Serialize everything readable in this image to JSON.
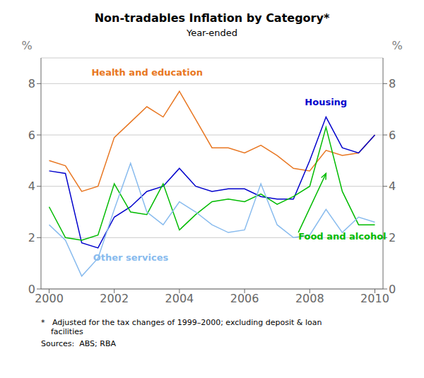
{
  "chart_data": {
    "type": "line",
    "title": "Non-tradables Inflation by Category*",
    "subtitle": "Year-ended",
    "footnotes": [
      "*   Adjusted for the tax changes of 1999–2000; excluding deposit & loan",
      "    facilities"
    ],
    "sources": "Sources:  ABS; RBA",
    "ylabel": "%",
    "y2label": "%",
    "xlim": [
      1999.75,
      2010.25
    ],
    "xticks": [
      2000,
      2002,
      2004,
      2006,
      2008,
      2010
    ],
    "ylim": [
      0,
      9
    ],
    "yticks": [
      0,
      2,
      4,
      6,
      8
    ],
    "y2lim": [
      0,
      9
    ],
    "y2ticks": [
      0,
      2,
      4,
      6,
      8
    ],
    "grid": true,
    "x": [
      2000.0,
      2000.5,
      2001.0,
      2001.5,
      2002.0,
      2002.5,
      2003.0,
      2003.5,
      2004.0,
      2004.5,
      2005.0,
      2005.5,
      2006.0,
      2006.5,
      2007.0,
      2007.5,
      2008.0,
      2008.5,
      2009.0,
      2009.5,
      2010.0
    ],
    "series": [
      {
        "name": "Health and education",
        "color": "#E87722",
        "values": [
          5.0,
          4.8,
          3.8,
          4.0,
          5.9,
          6.5,
          7.1,
          6.7,
          7.7,
          6.6,
          5.5,
          5.5,
          5.3,
          5.6,
          5.2,
          4.7,
          4.6,
          5.4,
          5.2,
          5.3,
          6.0
        ]
      },
      {
        "name": "Housing",
        "color": "#0000CC",
        "values": [
          4.6,
          4.5,
          1.8,
          1.6,
          2.8,
          3.2,
          3.8,
          4.0,
          4.7,
          4.0,
          3.8,
          3.9,
          3.9,
          3.6,
          3.5,
          3.5,
          5.0,
          6.7,
          5.5,
          5.3,
          6.0
        ]
      },
      {
        "name": "Food and alcohol",
        "color": "#00BB00",
        "values": [
          3.2,
          2.0,
          1.9,
          2.1,
          4.1,
          3.0,
          2.9,
          4.1,
          2.3,
          2.9,
          3.4,
          3.5,
          3.4,
          3.7,
          3.3,
          3.6,
          4.0,
          6.3,
          3.8,
          2.5,
          2.5
        ]
      },
      {
        "name": "Other services",
        "color": "#88BBEE",
        "values": [
          2.5,
          1.9,
          0.5,
          1.2,
          3.1,
          4.9,
          3.0,
          2.5,
          3.4,
          3.0,
          2.5,
          2.2,
          2.3,
          4.1,
          2.5,
          2.0,
          2.1,
          3.1,
          2.2,
          2.8,
          2.6
        ]
      }
    ],
    "annotations": [
      {
        "text": "Health and education",
        "x": 2001.3,
        "y": 8.3,
        "color": "#E87722"
      },
      {
        "text": "Housing",
        "x": 2007.85,
        "y": 7.15,
        "color": "#0000CC"
      },
      {
        "text": "Food and alcohol",
        "x": 2007.65,
        "y": 2.2,
        "color": "#00BB00",
        "arrow": [
          2008.5,
          4.5
        ]
      },
      {
        "text": "Other services",
        "x": 2001.35,
        "y": 1.1,
        "color": "#88BBEE"
      }
    ]
  }
}
